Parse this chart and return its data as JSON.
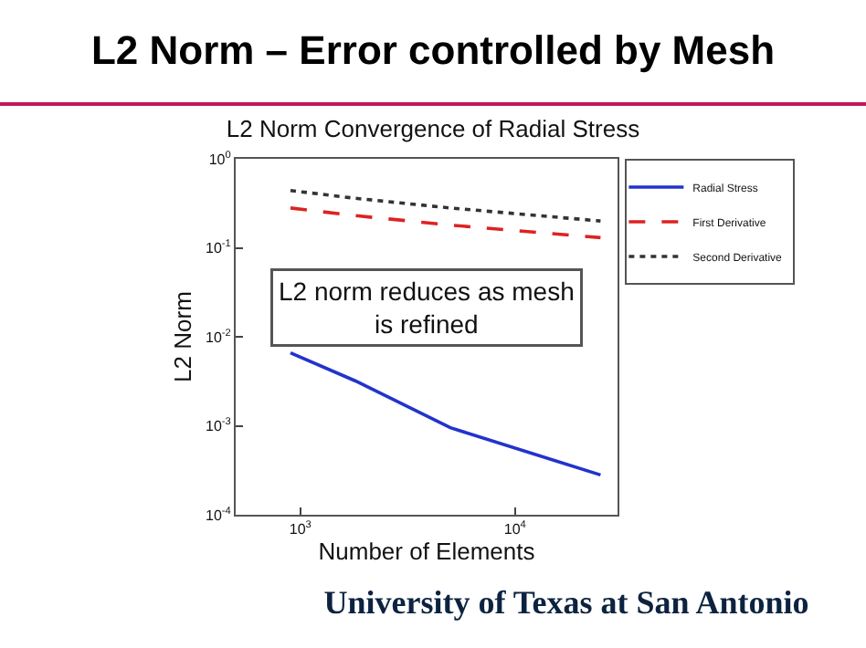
{
  "chart_data": {
    "type": "line",
    "title": "L2 Norm – Error controlled by Mesh",
    "subtitle": "L2 Norm Convergence of Radial Stress",
    "xlabel": "Number of Elements",
    "ylabel": "L2 Norm",
    "annotations": [
      "L2 norm reduces as mesh is refined",
      "University of Texas at San Antonio"
    ],
    "log": "xy",
    "xlim": [
      500,
      30000
    ],
    "ylim": [
      0.0001,
      1
    ],
    "xticks": [
      {
        "value": 1000,
        "label": "10$^{3}$"
      },
      {
        "value": 10000,
        "label": "10$^{4}$"
      }
    ],
    "yticks": [
      {
        "value": 0.0001,
        "label": "10$^{-4}$"
      },
      {
        "value": 0.001,
        "label": "10$^{-3}$"
      },
      {
        "value": 0.01,
        "label": "10$^{-2}$"
      },
      {
        "value": 0.1,
        "label": "10$^{-1}$"
      },
      {
        "value": 1,
        "label": "10$^{0}$"
      }
    ],
    "x": [
      900,
      1800,
      5000,
      25000
    ],
    "series": [
      {
        "name": "Radial Stress",
        "color": "#2233cc",
        "line_style": "solid",
        "values": [
          0.0066,
          0.0032,
          0.00095,
          0.00028
        ]
      },
      {
        "name": "First Derivative",
        "color": "#dd2222",
        "line_style": "dashed",
        "values": [
          0.28,
          0.23,
          0.18,
          0.13
        ]
      },
      {
        "name": "Second Derivative",
        "color": "#333333",
        "line_style": "dotted",
        "values": [
          0.44,
          0.36,
          0.28,
          0.2
        ]
      }
    ],
    "grid": false,
    "legend": "top right",
    "marker": "none"
  }
}
